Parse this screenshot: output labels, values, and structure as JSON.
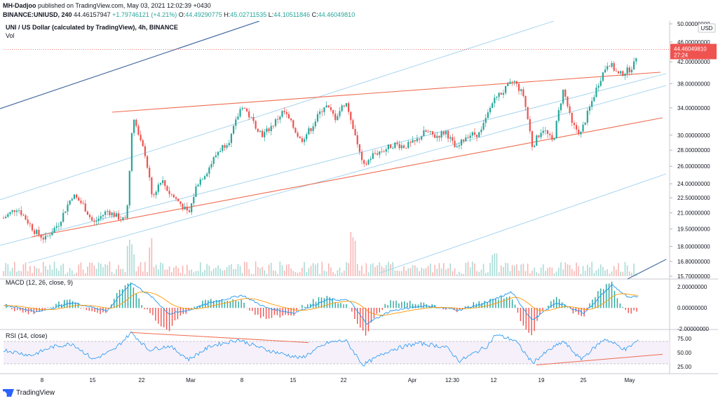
{
  "header": {
    "author": "MH-Dadjoo",
    "published": "published on TradingView.com, May 03, 2021 12:02:39 +0430",
    "symbol": "BINANCE:UNIUSD, 240",
    "last": "44.46157947",
    "change": "+1.79746121 (+4.21%)",
    "ohlc": {
      "o_label": "O:",
      "o": "44.49290775",
      "h_label": "H:",
      "h": "45.02711535",
      "l_label": "L:",
      "l": "44.10511846",
      "c_label": "C:",
      "c": "44.46049810"
    }
  },
  "chart_data": {
    "type": "candlestick",
    "title": "UNI / US Dollar (calculated by TradingView), 4h, BINANCE",
    "volume_label": "Vol",
    "currency": "USD",
    "y_scale": "log",
    "price_ticks": [
      "50.00000000",
      "46.00000000",
      "42.00000000",
      "38.00000000",
      "34.00000000",
      "30.00000000",
      "28.00000000",
      "26.00000000",
      "24.00000000",
      "22.50000000",
      "21.00000000",
      "19.50000000",
      "18.00000000",
      "16.80000000",
      "15.70000000"
    ],
    "last_price_label": "44.46049810",
    "countdown": "27:24",
    "x_ticks": [
      "8",
      "15",
      "22",
      "Mar",
      "8",
      "15",
      "22",
      "Apr",
      "12:30",
      "12",
      "19",
      "25",
      "May"
    ],
    "price_path": [
      {
        "t": 0,
        "p": 20.5
      },
      {
        "t": 20,
        "p": 21.5
      },
      {
        "t": 45,
        "p": 19.3
      },
      {
        "t": 60,
        "p": 18.6
      },
      {
        "t": 80,
        "p": 20.0
      },
      {
        "t": 100,
        "p": 22.8
      },
      {
        "t": 115,
        "p": 21.8
      },
      {
        "t": 130,
        "p": 20.0
      },
      {
        "t": 150,
        "p": 21.2
      },
      {
        "t": 165,
        "p": 20.6
      },
      {
        "t": 178,
        "p": 20.2
      },
      {
        "t": 188,
        "p": 33.0
      },
      {
        "t": 196,
        "p": 29.5
      },
      {
        "t": 205,
        "p": 27.5
      },
      {
        "t": 215,
        "p": 22.5
      },
      {
        "t": 228,
        "p": 24.5
      },
      {
        "t": 240,
        "p": 23.0
      },
      {
        "t": 255,
        "p": 22.0
      },
      {
        "t": 268,
        "p": 20.8
      },
      {
        "t": 280,
        "p": 24.0
      },
      {
        "t": 295,
        "p": 25.5
      },
      {
        "t": 310,
        "p": 27.8
      },
      {
        "t": 328,
        "p": 29.5
      },
      {
        "t": 345,
        "p": 34.5
      },
      {
        "t": 360,
        "p": 32.0
      },
      {
        "t": 375,
        "p": 30.0
      },
      {
        "t": 390,
        "p": 31.5
      },
      {
        "t": 405,
        "p": 33.5
      },
      {
        "t": 420,
        "p": 31.0
      },
      {
        "t": 430,
        "p": 29.2
      },
      {
        "t": 445,
        "p": 31.0
      },
      {
        "t": 465,
        "p": 34.5
      },
      {
        "t": 480,
        "p": 32.5
      },
      {
        "t": 495,
        "p": 35.0
      },
      {
        "t": 505,
        "p": 31.5
      },
      {
        "t": 520,
        "p": 25.8
      },
      {
        "t": 535,
        "p": 27.5
      },
      {
        "t": 550,
        "p": 28.0
      },
      {
        "t": 565,
        "p": 28.8
      },
      {
        "t": 580,
        "p": 28.5
      },
      {
        "t": 595,
        "p": 29.0
      },
      {
        "t": 610,
        "p": 30.5
      },
      {
        "t": 625,
        "p": 29.8
      },
      {
        "t": 640,
        "p": 30.5
      },
      {
        "t": 655,
        "p": 28.0
      },
      {
        "t": 670,
        "p": 30.0
      },
      {
        "t": 690,
        "p": 30.2
      },
      {
        "t": 710,
        "p": 35.5
      },
      {
        "t": 722,
        "p": 36.5
      },
      {
        "t": 738,
        "p": 38.5
      },
      {
        "t": 752,
        "p": 36.0
      },
      {
        "t": 765,
        "p": 28.5
      },
      {
        "t": 780,
        "p": 31.0
      },
      {
        "t": 795,
        "p": 29.0
      },
      {
        "t": 810,
        "p": 37.0
      },
      {
        "t": 822,
        "p": 31.5
      },
      {
        "t": 835,
        "p": 30.2
      },
      {
        "t": 848,
        "p": 34.0
      },
      {
        "t": 862,
        "p": 38.5
      },
      {
        "t": 875,
        "p": 42.0
      },
      {
        "t": 890,
        "p": 39.5
      },
      {
        "t": 905,
        "p": 40.5
      },
      {
        "t": 912,
        "p": 41.5
      },
      {
        "t": 918,
        "p": 44.5
      }
    ],
    "macd": {
      "label": "MACD (12, 26, close, 9)",
      "ticks": [
        "2.00000000",
        "0.00000000",
        "-2.00000000"
      ],
      "series": [
        {
          "t": 0,
          "v": 0.3
        },
        {
          "t": 50,
          "v": -0.4
        },
        {
          "t": 100,
          "v": 0.5
        },
        {
          "t": 150,
          "v": -0.3
        },
        {
          "t": 185,
          "v": 2.4
        },
        {
          "t": 215,
          "v": 1.0
        },
        {
          "t": 240,
          "v": -0.6
        },
        {
          "t": 270,
          "v": -0.2
        },
        {
          "t": 300,
          "v": 0.5
        },
        {
          "t": 345,
          "v": 1.2
        },
        {
          "t": 380,
          "v": 0.0
        },
        {
          "t": 420,
          "v": -0.5
        },
        {
          "t": 470,
          "v": 0.8
        },
        {
          "t": 500,
          "v": 0.7
        },
        {
          "t": 525,
          "v": -1.5
        },
        {
          "t": 560,
          "v": -0.3
        },
        {
          "t": 610,
          "v": 0.2
        },
        {
          "t": 660,
          "v": -0.2
        },
        {
          "t": 700,
          "v": 0.5
        },
        {
          "t": 735,
          "v": 1.5
        },
        {
          "t": 765,
          "v": -1.2
        },
        {
          "t": 800,
          "v": 0.5
        },
        {
          "t": 840,
          "v": -0.5
        },
        {
          "t": 880,
          "v": 2.2
        },
        {
          "t": 905,
          "v": 0.9
        },
        {
          "t": 918,
          "v": 1.1
        }
      ]
    },
    "rsi": {
      "label": "RSI (14, close)",
      "ticks": [
        "75.00",
        "50.00",
        "25.00"
      ],
      "series": [
        {
          "t": 0,
          "v": 55
        },
        {
          "t": 40,
          "v": 45
        },
        {
          "t": 70,
          "v": 60
        },
        {
          "t": 100,
          "v": 66
        },
        {
          "t": 130,
          "v": 38
        },
        {
          "t": 160,
          "v": 55
        },
        {
          "t": 185,
          "v": 86
        },
        {
          "t": 210,
          "v": 55
        },
        {
          "t": 240,
          "v": 62
        },
        {
          "t": 268,
          "v": 38
        },
        {
          "t": 300,
          "v": 62
        },
        {
          "t": 340,
          "v": 73
        },
        {
          "t": 380,
          "v": 55
        },
        {
          "t": 430,
          "v": 40
        },
        {
          "t": 470,
          "v": 68
        },
        {
          "t": 495,
          "v": 72
        },
        {
          "t": 520,
          "v": 28
        },
        {
          "t": 560,
          "v": 55
        },
        {
          "t": 600,
          "v": 67
        },
        {
          "t": 640,
          "v": 60
        },
        {
          "t": 660,
          "v": 35
        },
        {
          "t": 700,
          "v": 62
        },
        {
          "t": 712,
          "v": 82
        },
        {
          "t": 740,
          "v": 72
        },
        {
          "t": 765,
          "v": 32
        },
        {
          "t": 790,
          "v": 55
        },
        {
          "t": 810,
          "v": 70
        },
        {
          "t": 835,
          "v": 38
        },
        {
          "t": 870,
          "v": 75
        },
        {
          "t": 900,
          "v": 55
        },
        {
          "t": 918,
          "v": 72
        }
      ]
    },
    "colors": {
      "up": "#26a69a",
      "down": "#ef5350",
      "trend": "#ef6c50",
      "channel": "#9fd1ee",
      "blue_line": "#4a6fa5",
      "macd": "#2196f3",
      "signal": "#ff9800",
      "rsi": "#2196f3",
      "label_bg": "#ef5350"
    }
  },
  "footer": {
    "brand": "TradingView"
  }
}
